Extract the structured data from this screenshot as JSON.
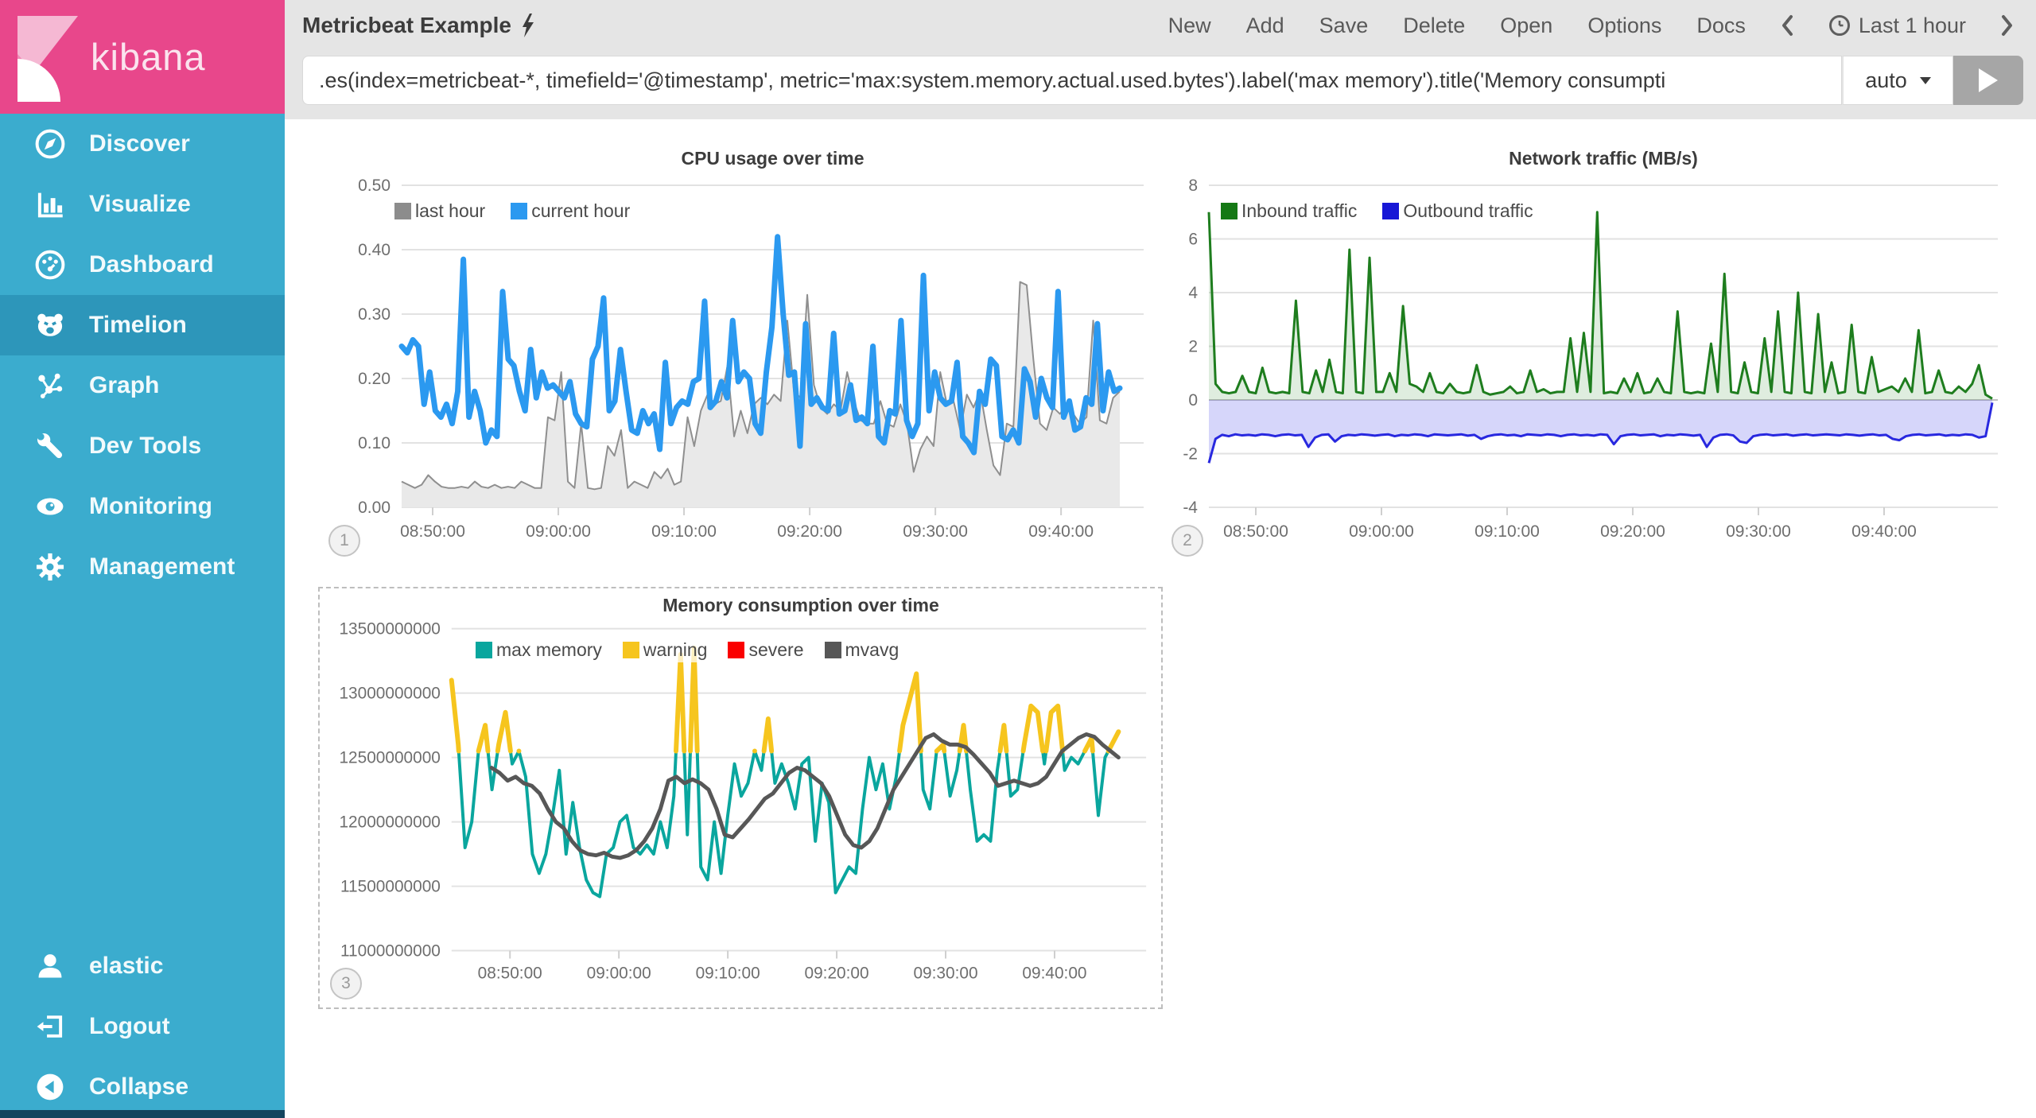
{
  "ui_colors": {
    "sidebar_teal": "#3BACCE",
    "sidebar_selected": "#2D96BA",
    "logo_pink": "#E8478B",
    "header_gray": "#E5E5E5",
    "cpu_blue": "#2B99F0",
    "last_hour_gray": "#8C8C8C",
    "inbound_green": "#1E7D1E",
    "outbound_blue": "#2828DF",
    "memory_teal": "#0AA69E",
    "warning_yellow": "#F6C51E",
    "severe_red": "#FA0000",
    "mvavg_gray": "#575757"
  },
  "sidebar": {
    "logo_text": "kibana",
    "items": [
      {
        "icon": "compass-icon",
        "label": "Discover"
      },
      {
        "icon": "bar-chart-icon",
        "label": "Visualize"
      },
      {
        "icon": "dashboard-icon",
        "label": "Dashboard"
      },
      {
        "icon": "timelion-face-icon",
        "label": "Timelion",
        "selected": true
      },
      {
        "icon": "graph-nodes-icon",
        "label": "Graph"
      },
      {
        "icon": "wrench-icon",
        "label": "Dev Tools"
      },
      {
        "icon": "eye-icon",
        "label": "Monitoring"
      },
      {
        "icon": "gear-icon",
        "label": "Management"
      }
    ],
    "footer_items": [
      {
        "icon": "user-icon",
        "label": "elastic"
      },
      {
        "icon": "logout-icon",
        "label": "Logout"
      },
      {
        "icon": "collapse-icon",
        "label": "Collapse"
      }
    ]
  },
  "header": {
    "title": "Metricbeat Example",
    "nav": [
      "New",
      "Add",
      "Save",
      "Delete",
      "Open",
      "Options",
      "Docs"
    ],
    "time_picker": "Last 1 hour"
  },
  "query_bar": {
    "value": ".es(index=metricbeat-*, timefield='@timestamp', metric='max:system.memory.actual.used.bytes').label('max memory').title('Memory consumpti",
    "interval": "auto"
  },
  "chart_data": [
    {
      "type": "line",
      "title": "CPU usage over time",
      "badge": "1",
      "ylim": [
        0,
        0.5
      ],
      "yticks": [
        0.5,
        0.4,
        0.3,
        0.2,
        0.1,
        0
      ],
      "ytick_labels": [
        "0.50",
        "0.40",
        "0.30",
        "0.20",
        "0.10",
        "0.00"
      ],
      "xtick_labels": [
        "08:50:00",
        "09:00:00",
        "09:10:00",
        "09:20:00",
        "09:30:00",
        "09:40:00"
      ],
      "grid": true,
      "legend_position": "top-left",
      "series": [
        {
          "name": "last hour",
          "type": "area",
          "color": "#8F8F8F",
          "legend_color": "#8C8C8C",
          "fill": "#E9E9E9",
          "stroke_width": 2,
          "values": [
            0.04,
            0.035,
            0.03,
            0.035,
            0.05,
            0.04,
            0.032,
            0.03,
            0.03,
            0.032,
            0.03,
            0.04,
            0.032,
            0.03,
            0.035,
            0.03,
            0.032,
            0.03,
            0.04,
            0.035,
            0.03,
            0.03,
            0.14,
            0.135,
            0.21,
            0.04,
            0.03,
            0.13,
            0.03,
            0.028,
            0.03,
            0.095,
            0.08,
            0.12,
            0.03,
            0.04,
            0.035,
            0.03,
            0.055,
            0.045,
            0.06,
            0.035,
            0.04,
            0.14,
            0.095,
            0.15,
            0.175,
            0.16,
            0.165,
            0.22,
            0.11,
            0.15,
            0.115,
            0.16,
            0.17,
            0.16,
            0.175,
            0.165,
            0.29,
            0.18,
            0.17,
            0.33,
            0.19,
            0.155,
            0.145,
            0.16,
            0.15,
            0.21,
            0.165,
            0.135,
            0.13,
            0.13,
            0.165,
            0.13,
            0.125,
            0.16,
            0.13,
            0.055,
            0.09,
            0.11,
            0.095,
            0.21,
            0.16,
            0.165,
            0.12,
            0.175,
            0.155,
            0.18,
            0.12,
            0.065,
            0.05,
            0.13,
            0.125,
            0.35,
            0.345,
            0.23,
            0.13,
            0.12,
            0.155,
            0.145,
            0.16,
            0.145,
            0.13,
            0.14,
            0.29,
            0.135,
            0.13,
            0.17,
            0.18
          ]
        },
        {
          "name": "current hour",
          "type": "line",
          "color": "#2B99F0",
          "stroke_width": 7,
          "values": [
            0.25,
            0.24,
            0.26,
            0.25,
            0.16,
            0.21,
            0.15,
            0.14,
            0.16,
            0.13,
            0.18,
            0.385,
            0.14,
            0.18,
            0.15,
            0.1,
            0.12,
            0.11,
            0.335,
            0.23,
            0.22,
            0.18,
            0.15,
            0.245,
            0.17,
            0.21,
            0.185,
            0.19,
            0.18,
            0.17,
            0.195,
            0.145,
            0.13,
            0.125,
            0.23,
            0.25,
            0.325,
            0.15,
            0.165,
            0.245,
            0.18,
            0.12,
            0.115,
            0.15,
            0.13,
            0.145,
            0.09,
            0.225,
            0.13,
            0.155,
            0.165,
            0.16,
            0.195,
            0.2,
            0.32,
            0.155,
            0.165,
            0.195,
            0.17,
            0.29,
            0.195,
            0.21,
            0.2,
            0.13,
            0.115,
            0.21,
            0.28,
            0.42,
            0.3,
            0.205,
            0.21,
            0.095,
            0.285,
            0.16,
            0.17,
            0.155,
            0.15,
            0.27,
            0.145,
            0.15,
            0.19,
            0.135,
            0.14,
            0.13,
            0.25,
            0.11,
            0.1,
            0.15,
            0.145,
            0.29,
            0.135,
            0.11,
            0.13,
            0.36,
            0.15,
            0.21,
            0.17,
            0.16,
            0.165,
            0.225,
            0.11,
            0.1,
            0.085,
            0.18,
            0.16,
            0.23,
            0.22,
            0.11,
            0.105,
            0.12,
            0.1,
            0.215,
            0.195,
            0.14,
            0.2,
            0.17,
            0.155,
            0.335,
            0.14,
            0.165,
            0.12,
            0.125,
            0.17,
            0.16,
            0.285,
            0.15,
            0.21,
            0.18,
            0.185
          ]
        }
      ]
    },
    {
      "type": "area",
      "title": "Network traffic (MB/s)",
      "badge": "2",
      "ylim": [
        -4,
        8
      ],
      "yticks": [
        8,
        6,
        4,
        2,
        0,
        -2,
        -4
      ],
      "ytick_labels": [
        "8",
        "6",
        "4",
        "2",
        "0",
        "-2",
        "-4"
      ],
      "xtick_labels": [
        "08:50:00",
        "09:00:00",
        "09:10:00",
        "09:20:00",
        "09:30:00",
        "09:40:00"
      ],
      "grid": true,
      "legend_position": "top-left",
      "series": [
        {
          "name": "Inbound traffic",
          "type": "area",
          "color": "#1E7D1E",
          "legend_color": "#157915",
          "fill": "rgba(30,125,30,0.14)",
          "stroke_width": 3,
          "values": [
            7,
            0.6,
            0.3,
            0.25,
            0.3,
            0.9,
            0.3,
            0.25,
            1.2,
            0.3,
            0.25,
            0.3,
            0.25,
            3.7,
            0.3,
            0.25,
            1.1,
            0.3,
            1.5,
            0.3,
            0.25,
            5.6,
            0.3,
            0.25,
            5.3,
            0.3,
            0.3,
            1,
            0.3,
            3.5,
            0.6,
            0.5,
            0.3,
            1,
            0.3,
            0.25,
            0.6,
            0.3,
            0.25,
            0.3,
            1.3,
            0.3,
            0.2,
            0.25,
            0.3,
            0.5,
            0.25,
            0.3,
            1.1,
            0.3,
            0.4,
            0.25,
            0.3,
            0.3,
            2.3,
            0.3,
            2.5,
            0.3,
            7,
            0.25,
            0.3,
            0.25,
            0.8,
            0.3,
            1,
            0.25,
            0.3,
            0.8,
            0.3,
            0.25,
            3.3,
            0.3,
            0.25,
            0.3,
            0.25,
            2.1,
            0.3,
            4.7,
            0.3,
            0.25,
            1.4,
            0.3,
            0.25,
            2.3,
            0.3,
            3.3,
            0.3,
            0.25,
            4,
            0.3,
            0.25,
            3.2,
            0.3,
            1.4,
            0.25,
            0.3,
            2.8,
            0.3,
            0.25,
            1.6,
            0.3,
            0.4,
            0.5,
            0.3,
            0.8,
            0.3,
            2.6,
            0.25,
            0.3,
            1.1,
            0.3,
            0.25,
            0.5,
            0.3,
            0.6,
            1.3,
            0.2,
            0.05
          ]
        },
        {
          "name": "Outbound traffic",
          "type": "area",
          "color": "#2828DF",
          "legend_color": "#1717D6",
          "fill": "rgba(70,70,230,0.22)",
          "stroke_width": 3,
          "values": [
            -2.35,
            -1.45,
            -1.3,
            -1.35,
            -1.28,
            -1.32,
            -1.3,
            -1.33,
            -1.28,
            -1.3,
            -1.35,
            -1.3,
            -1.28,
            -1.32,
            -1.3,
            -1.75,
            -1.4,
            -1.3,
            -1.28,
            -1.55,
            -1.35,
            -1.3,
            -1.32,
            -1.28,
            -1.3,
            -1.33,
            -1.3,
            -1.28,
            -1.35,
            -1.3,
            -1.32,
            -1.28,
            -1.3,
            -1.35,
            -1.28,
            -1.3,
            -1.32,
            -1.3,
            -1.28,
            -1.33,
            -1.3,
            -1.45,
            -1.35,
            -1.3,
            -1.28,
            -1.32,
            -1.3,
            -1.35,
            -1.28,
            -1.3,
            -1.32,
            -1.28,
            -1.3,
            -1.35,
            -1.3,
            -1.28,
            -1.32,
            -1.3,
            -1.33,
            -1.28,
            -1.3,
            -1.65,
            -1.35,
            -1.3,
            -1.28,
            -1.32,
            -1.3,
            -1.28,
            -1.35,
            -1.3,
            -1.32,
            -1.28,
            -1.3,
            -1.33,
            -1.3,
            -1.75,
            -1.4,
            -1.3,
            -1.28,
            -1.32,
            -1.55,
            -1.6,
            -1.35,
            -1.3,
            -1.28,
            -1.32,
            -1.3,
            -1.28,
            -1.33,
            -1.3,
            -1.28,
            -1.32,
            -1.3,
            -1.28,
            -1.3,
            -1.32,
            -1.28,
            -1.3,
            -1.33,
            -1.3,
            -1.28,
            -1.32,
            -1.3,
            -1.45,
            -1.5,
            -1.35,
            -1.3,
            -1.28,
            -1.32,
            -1.3,
            -1.28,
            -1.33,
            -1.3,
            -1.32,
            -1.28,
            -1.3,
            -1.4,
            -1.35,
            -0.1
          ]
        }
      ]
    },
    {
      "type": "line",
      "title": "Memory consumption over time",
      "badge": "3",
      "selected": true,
      "unit": "bytes (values stored in units of 1e9 bytes)",
      "ylim": [
        11,
        13.5
      ],
      "yticks": [
        13.5,
        13,
        12.5,
        12,
        11.5,
        11
      ],
      "ytick_labels": [
        "13500000000",
        "13000000000",
        "12500000000",
        "12000000000",
        "11500000000",
        "11000000000"
      ],
      "xtick_labels": [
        "08:50:00",
        "09:00:00",
        "09:10:00",
        "09:20:00",
        "09:30:00",
        "09:40:00"
      ],
      "grid": true,
      "legend_position": "top-left",
      "series": [
        {
          "name": "max memory",
          "type": "line",
          "color": "#0AA69E",
          "stroke_width": 4,
          "values": [
            13.1,
            12.6,
            11.8,
            12.0,
            12.55,
            12.75,
            12.25,
            12.6,
            12.85,
            12.45,
            12.55,
            12.35,
            11.75,
            11.6,
            11.75,
            12.05,
            12.4,
            11.75,
            12.15,
            11.8,
            11.55,
            11.45,
            11.42,
            11.75,
            11.8,
            12.0,
            12.05,
            11.8,
            11.75,
            11.82,
            11.75,
            12.0,
            11.8,
            12.2,
            13.3,
            11.9,
            13.35,
            11.65,
            11.55,
            12.0,
            11.6,
            12.05,
            12.45,
            12.2,
            12.3,
            12.55,
            12.4,
            12.8,
            12.3,
            12.45,
            12.3,
            12.1,
            12.45,
            12.5,
            11.85,
            12.3,
            12.15,
            11.45,
            11.55,
            11.65,
            11.6,
            12.1,
            12.5,
            12.25,
            12.45,
            12.1,
            12.35,
            12.75,
            12.95,
            13.15,
            12.25,
            12.1,
            12.55,
            12.6,
            12.2,
            12.4,
            12.75,
            12.25,
            11.85,
            11.9,
            11.85,
            12.4,
            12.75,
            12.2,
            12.25,
            12.6,
            12.9,
            12.85,
            12.45,
            12.85,
            12.9,
            12.4,
            12.5,
            12.45,
            12.55,
            12.65,
            12.05,
            12.5,
            12.6,
            12.7
          ]
        },
        {
          "name": "warning",
          "type": "overlay",
          "color": "#F6C51E",
          "stroke_width": 6,
          "source": "max memory",
          "threshold": 12.55
        },
        {
          "name": "severe",
          "type": "overlay",
          "color": "#FA0000",
          "stroke_width": 6,
          "source": "max memory",
          "threshold": 13.4
        },
        {
          "name": "mvavg",
          "type": "line",
          "color": "#575757",
          "stroke_width": 5,
          "x_start_frac": 0.06,
          "values": [
            12.42,
            12.38,
            12.32,
            12.35,
            12.3,
            12.28,
            12.22,
            12.1,
            12.0,
            11.95,
            11.85,
            11.78,
            11.75,
            11.74,
            11.76,
            11.73,
            11.72,
            11.74,
            11.78,
            11.85,
            11.95,
            12.1,
            12.32,
            12.35,
            12.3,
            12.33,
            12.3,
            12.25,
            12.1,
            11.9,
            11.88,
            11.95,
            12.02,
            12.1,
            12.18,
            12.22,
            12.3,
            12.38,
            12.42,
            12.4,
            12.35,
            12.3,
            12.2,
            12.05,
            11.9,
            11.82,
            11.8,
            11.85,
            11.95,
            12.1,
            12.25,
            12.35,
            12.45,
            12.55,
            12.65,
            12.68,
            12.63,
            12.6,
            12.6,
            12.58,
            12.52,
            12.45,
            12.38,
            12.28,
            12.3,
            12.32,
            12.3,
            12.28,
            12.3,
            12.35,
            12.45,
            12.55,
            12.6,
            12.65,
            12.68,
            12.66,
            12.6,
            12.55,
            12.5
          ]
        }
      ]
    }
  ]
}
